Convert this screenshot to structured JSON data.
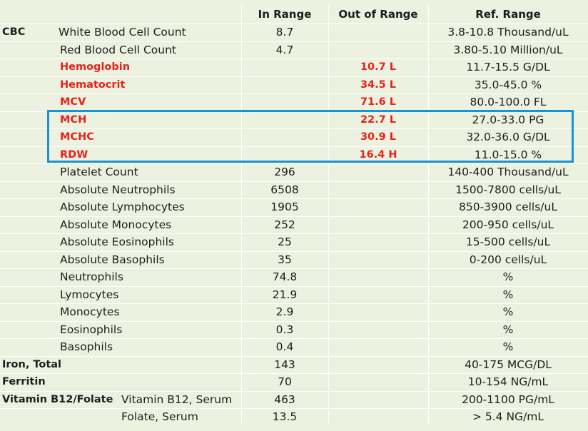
{
  "headers": {
    "in_range": "In Range",
    "out_of_range": "Out of Range",
    "ref_range": "Ref. Range"
  },
  "colors": {
    "background": "#ecf2df",
    "out_of_range_text": "#e8211a",
    "highlight_border": "#1495d9"
  },
  "rows": [
    {
      "group": "CBC",
      "label": "White Blood Cell Count",
      "in_range": "8.7",
      "out_range": "",
      "ref": "3.8-10.8 Thousand/uL",
      "flag": false
    },
    {
      "group": "",
      "label": "Red Blood Cell Count",
      "in_range": "4.7",
      "out_range": "",
      "ref": "3.80-5.10 Million/uL",
      "flag": false
    },
    {
      "group": "",
      "label": "Hemoglobin",
      "in_range": "",
      "out_range": "10.7 L",
      "ref": "11.7-15.5 G/DL",
      "flag": true
    },
    {
      "group": "",
      "label": "Hematocrit",
      "in_range": "",
      "out_range": "34.5 L",
      "ref": "35.0-45.0 %",
      "flag": true
    },
    {
      "group": "",
      "label": "MCV",
      "in_range": "",
      "out_range": "71.6 L",
      "ref": "80.0-100.0 FL",
      "flag": true
    },
    {
      "group": "",
      "label": "MCH",
      "in_range": "",
      "out_range": "22.7 L",
      "ref": "27.0-33.0 PG",
      "flag": true
    },
    {
      "group": "",
      "label": "MCHC",
      "in_range": "",
      "out_range": "30.9 L",
      "ref": "32.0-36.0 G/DL",
      "flag": true
    },
    {
      "group": "",
      "label": "RDW",
      "in_range": "",
      "out_range": "16.4 H",
      "ref": "11.0-15.0 %",
      "flag": true
    },
    {
      "group": "",
      "label": "Platelet Count",
      "in_range": "296",
      "out_range": "",
      "ref": "140-400 Thousand/uL",
      "flag": false
    },
    {
      "group": "",
      "label": "Absolute Neutrophils",
      "in_range": "6508",
      "out_range": "",
      "ref": "1500-7800 cells/uL",
      "flag": false
    },
    {
      "group": "",
      "label": "Absolute Lymphocytes",
      "in_range": "1905",
      "out_range": "",
      "ref": "850-3900 cells/uL",
      "flag": false
    },
    {
      "group": "",
      "label": "Absolute Monocytes",
      "in_range": "252",
      "out_range": "",
      "ref": "200-950 cells/uL",
      "flag": false
    },
    {
      "group": "",
      "label": "Absolute Eosinophils",
      "in_range": "25",
      "out_range": "",
      "ref": "15-500 cells/uL",
      "flag": false
    },
    {
      "group": "",
      "label": "Absolute Basophils",
      "in_range": "35",
      "out_range": "",
      "ref": "0-200 cells/uL",
      "flag": false
    },
    {
      "group": "",
      "label": "Neutrophils",
      "in_range": "74.8",
      "out_range": "",
      "ref": "%",
      "flag": false
    },
    {
      "group": "",
      "label": "Lymocytes",
      "in_range": "21.9",
      "out_range": "",
      "ref": "%",
      "flag": false
    },
    {
      "group": "",
      "label": "Monocytes",
      "in_range": "2.9",
      "out_range": "",
      "ref": "%",
      "flag": false
    },
    {
      "group": "",
      "label": "Eosinophils",
      "in_range": "0.3",
      "out_range": "",
      "ref": "%",
      "flag": false
    },
    {
      "group": "",
      "label": "Basophils",
      "in_range": "0.4",
      "out_range": "",
      "ref": "%",
      "flag": false
    },
    {
      "group": "Iron, Total",
      "label": "",
      "in_range": "143",
      "out_range": "",
      "ref": "40-175 MCG/DL",
      "flag": false
    },
    {
      "group": "Ferritin",
      "label": "",
      "in_range": "70",
      "out_range": "",
      "ref": "10-154 NG/mL",
      "flag": false
    },
    {
      "group": "Vitamin B12/Folate",
      "label": "Vitamin B12, Serum",
      "in_range": "463",
      "out_range": "",
      "ref": "200-1100 PG/mL",
      "flag": false
    },
    {
      "group": "",
      "label": "Folate, Serum",
      "in_range": "13.5",
      "out_range": "",
      "ref": "> 5.4 NG/mL",
      "flag": false
    }
  ]
}
